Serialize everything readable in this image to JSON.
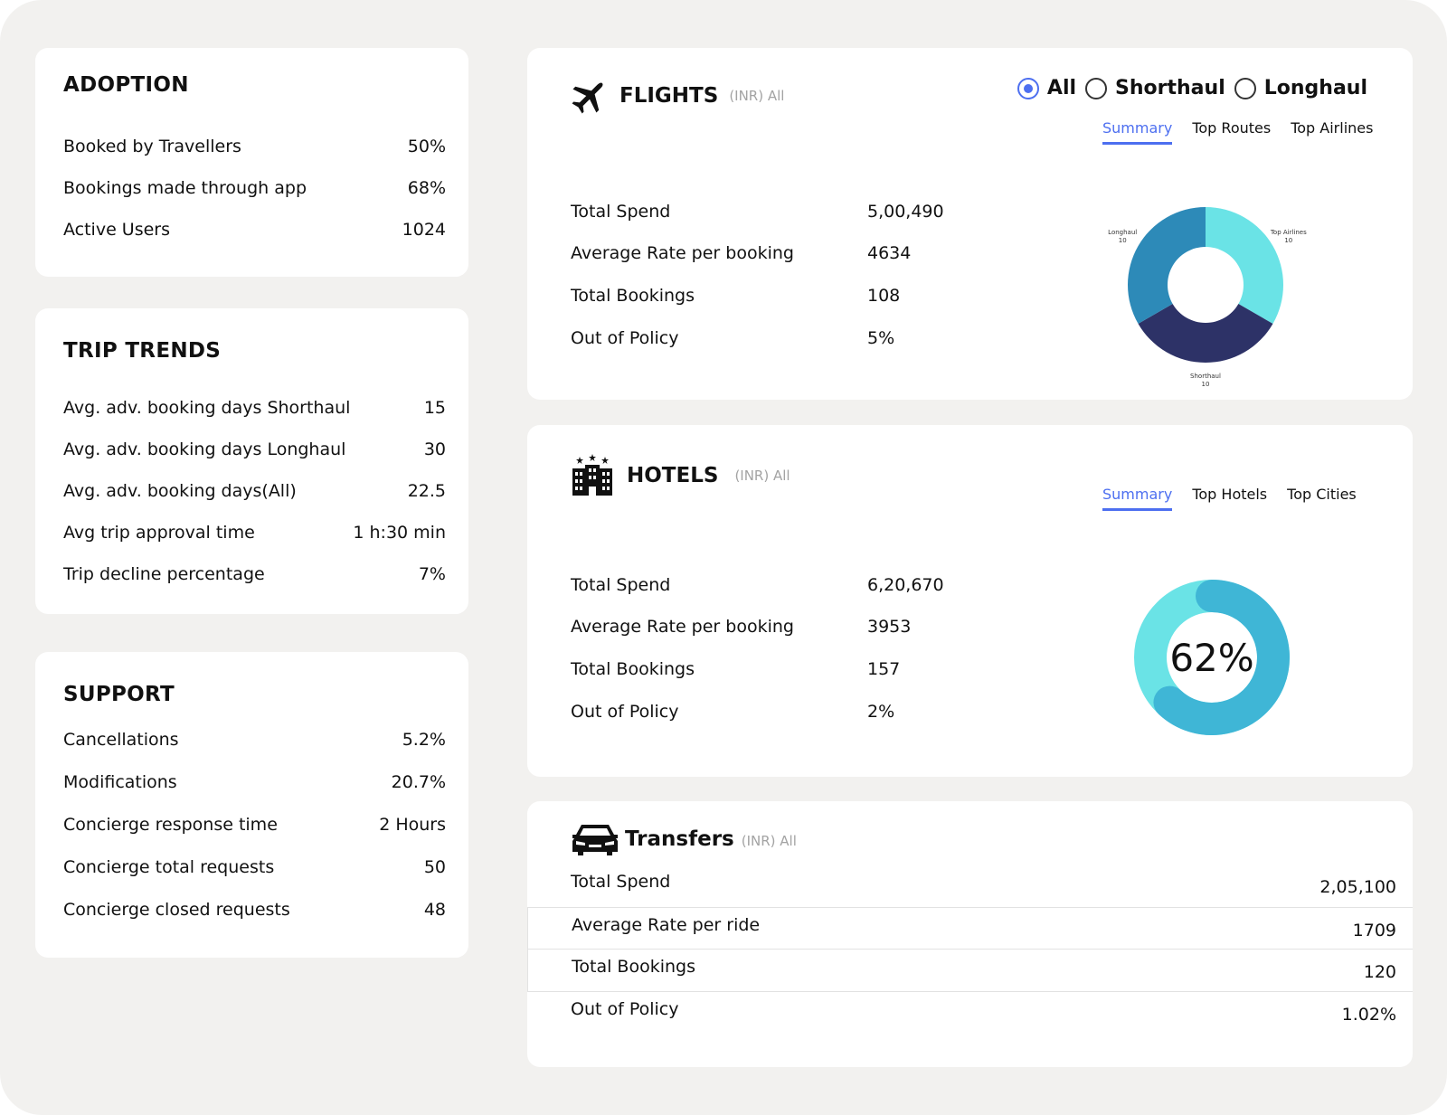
{
  "adoption": {
    "title": "ADOPTION",
    "rows": [
      {
        "label": "Booked by Travellers",
        "value": "50%"
      },
      {
        "label": "Bookings made through app",
        "value": "68%"
      },
      {
        "label": "Active Users",
        "value": "1024"
      }
    ]
  },
  "trip_trends": {
    "title": "TRIP TRENDS",
    "rows": [
      {
        "label": "Avg. adv. booking days Shorthaul",
        "value": "15"
      },
      {
        "label": "Avg. adv. booking days Longhaul",
        "value": "30"
      },
      {
        "label": "Avg. adv. booking days(All)",
        "value": "22.5"
      },
      {
        "label": "Avg trip approval time",
        "value": "1 h:30 min"
      },
      {
        "label": "Trip decline percentage",
        "value": "7%"
      }
    ]
  },
  "support": {
    "title": "SUPPORT",
    "rows": [
      {
        "label": "Cancellations",
        "value": "5.2%"
      },
      {
        "label": "Modifications",
        "value": "20.7%"
      },
      {
        "label": "Concierge response time",
        "value": "2 Hours"
      },
      {
        "label": "Concierge total requests",
        "value": "50"
      },
      {
        "label": "Concierge closed requests",
        "value": "48"
      }
    ]
  },
  "flights": {
    "icon": "airplane-icon",
    "title": "FLIGHTS",
    "subtitle": "(INR) All",
    "radios": [
      {
        "label": "All",
        "selected": true
      },
      {
        "label": "Shorthaul",
        "selected": false
      },
      {
        "label": "Longhaul",
        "selected": false
      }
    ],
    "tabs": [
      "Summary",
      "Top Routes",
      "Top Airlines"
    ],
    "active_tab": "Summary",
    "metrics": [
      {
        "label": "Total Spend",
        "value": "5,00,490"
      },
      {
        "label": "Average Rate per booking",
        "value": "4634"
      },
      {
        "label": "Total Bookings",
        "value": "108"
      },
      {
        "label": "Out of Policy",
        "value": "5%"
      }
    ]
  },
  "hotels": {
    "icon": "hotel-building-icon",
    "title": "HOTELS",
    "subtitle": "(INR) All",
    "tabs": [
      "Summary",
      "Top Hotels",
      "Top Cities"
    ],
    "active_tab": "Summary",
    "metrics": [
      {
        "label": "Total Spend",
        "value": "6,20,670"
      },
      {
        "label": "Average Rate per booking",
        "value": "3953"
      },
      {
        "label": "Total Bookings",
        "value": "157"
      },
      {
        "label": "Out of Policy",
        "value": "2%"
      }
    ]
  },
  "transfers": {
    "icon": "car-icon",
    "title": "Transfers",
    "subtitle": "(INR) All",
    "metrics": [
      {
        "label": "Total Spend",
        "value": "2,05,100"
      },
      {
        "label": "Average Rate per ride",
        "value": "1709"
      },
      {
        "label": "Total Bookings",
        "value": "120"
      },
      {
        "label": "Out of Policy",
        "value": "1.02%"
      }
    ]
  },
  "colors": {
    "accent": "#4d6ff0",
    "donut_cyan": "#6ae3e6",
    "donut_navy": "#2d3267",
    "donut_blue": "#2d8ab8",
    "gauge_track": "#6ae3e6",
    "gauge_fill": "#3fb6d6"
  },
  "chart_data": [
    {
      "type": "pie",
      "variant": "donut",
      "categories": [
        "Top Airlines",
        "Shorthaul",
        "Longhaul"
      ],
      "values": [
        10,
        10,
        10
      ],
      "data_labels": [
        "10",
        "10",
        "10"
      ],
      "colors": [
        "#6ae3e6",
        "#2d3267",
        "#2d8ab8"
      ]
    },
    {
      "type": "pie",
      "variant": "gauge",
      "value": 62,
      "max": 100,
      "label": "62%",
      "colors": [
        "#3fb6d6",
        "#6ae3e6"
      ]
    }
  ]
}
